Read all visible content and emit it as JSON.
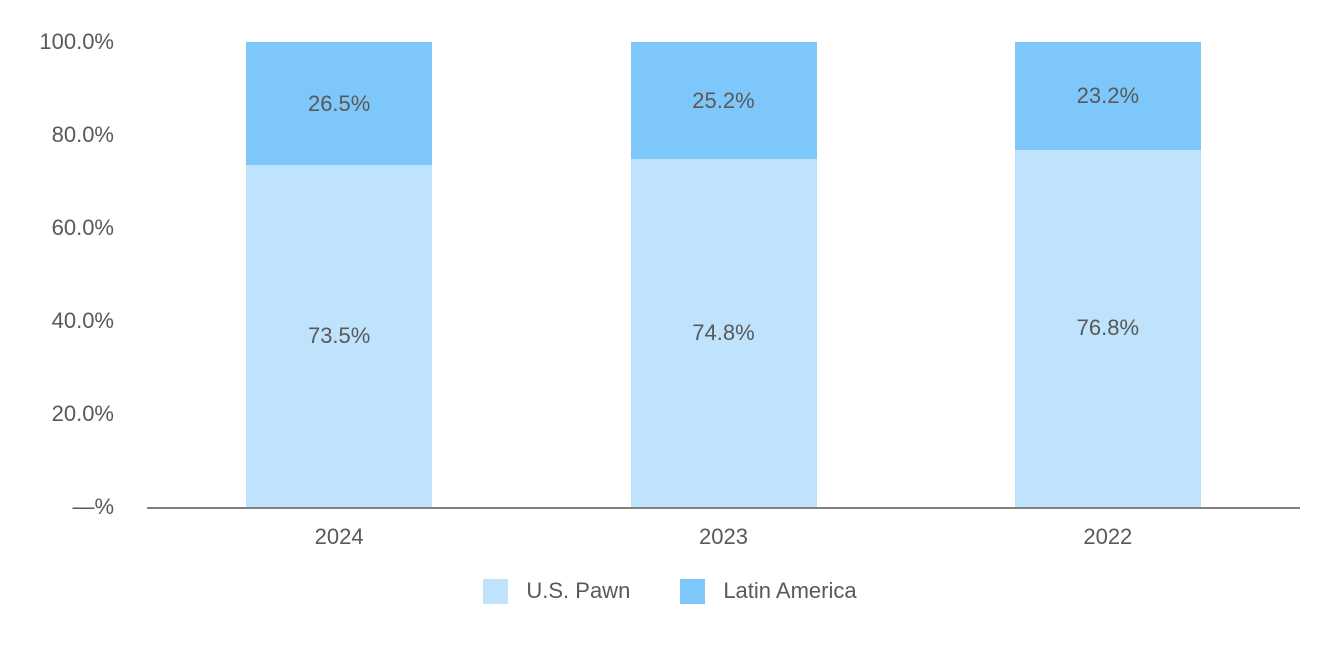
{
  "chart_data": {
    "type": "bar",
    "stacked": true,
    "orientation": "vertical",
    "categories": [
      "2024",
      "2023",
      "2022"
    ],
    "series": [
      {
        "name": "U.S. Pawn",
        "color": "#BFE3FC",
        "values": [
          73.5,
          74.8,
          76.8
        ],
        "labels": [
          "73.5%",
          "74.8%",
          "76.8%"
        ]
      },
      {
        "name": "Latin America",
        "color": "#7EC7FA",
        "values": [
          26.5,
          25.2,
          23.2
        ],
        "labels": [
          "26.5%",
          "25.2%",
          "23.2%"
        ]
      }
    ],
    "y_axis": {
      "range": [
        0,
        100
      ],
      "ticks": [
        {
          "label": "100.0%",
          "value": 100
        },
        {
          "label": "80.0%",
          "value": 80
        },
        {
          "label": "60.0%",
          "value": 60
        },
        {
          "label": "40.0%",
          "value": 40
        },
        {
          "label": "20.0%",
          "value": 20
        },
        {
          "label": "—%",
          "value": 0
        }
      ]
    },
    "title": "",
    "xlabel": "",
    "ylabel": "",
    "grid": false,
    "legend_position": "bottom-center",
    "colors": {
      "axis_line": "#808080",
      "text": "#595959",
      "background": "#FFFFFF"
    }
  }
}
